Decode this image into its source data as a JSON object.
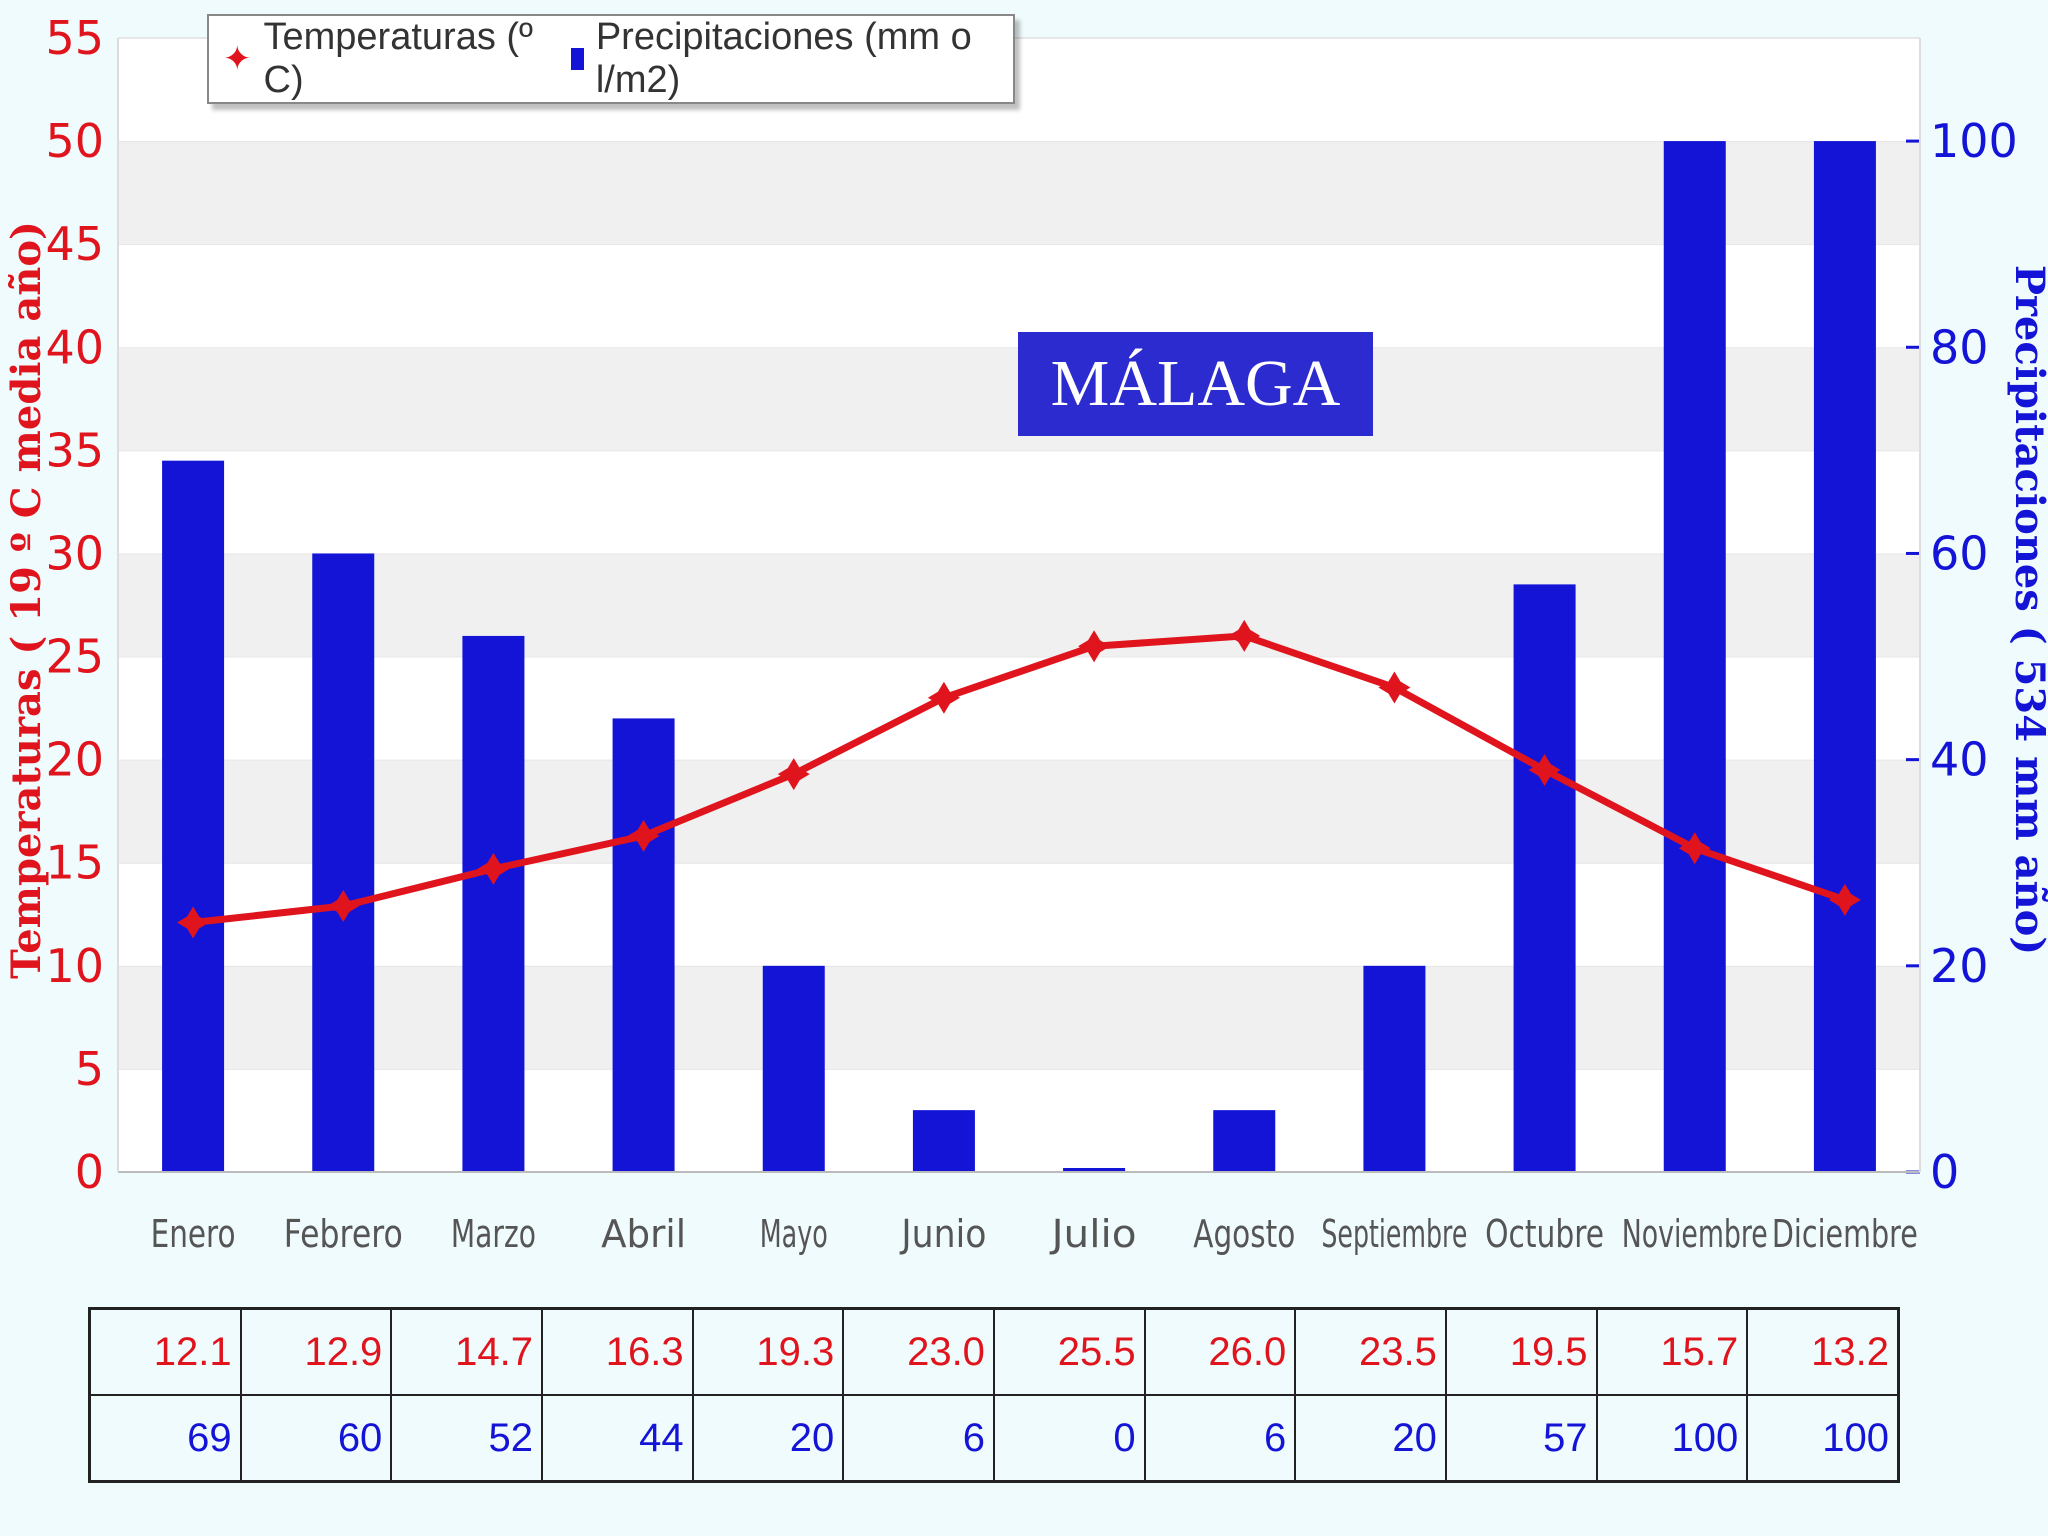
{
  "chart_data": {
    "type": "bar+line",
    "title": "MÁLAGA",
    "categories": [
      "Enero",
      "Febrero",
      "Marzo",
      "Abril",
      "Mayo",
      "Junio",
      "Julio",
      "Agosto",
      "Septiembre",
      "Octubre",
      "Noviembre",
      "Diciembre"
    ],
    "series": [
      {
        "name": "Temperaturas (º C)",
        "type": "line",
        "axis": "left",
        "color": "#e0141c",
        "values": [
          12.1,
          12.9,
          14.7,
          16.3,
          19.3,
          23.0,
          25.5,
          26.0,
          23.5,
          19.5,
          15.7,
          13.2
        ]
      },
      {
        "name": "Precipitaciones (mm o l/m2)",
        "type": "bar",
        "axis": "right",
        "color": "#1414d6",
        "values": [
          69,
          60,
          52,
          44,
          20,
          6,
          0,
          6,
          20,
          57,
          100,
          100
        ]
      }
    ],
    "ylabel_left": "Temperaturas  ( 19 º C media año)",
    "ylabel_right": "Precipitaciones ( 534 mm año)",
    "ylim_left": [
      0,
      55
    ],
    "yticks_left": [
      "0",
      "5",
      "10",
      "15",
      "20",
      "25",
      "30",
      "35",
      "40",
      "45",
      "50",
      "55"
    ],
    "ylim_right": [
      0,
      110
    ],
    "yticks_right": [
      "0",
      "20",
      "40",
      "60",
      "80",
      "100"
    ],
    "grid": "alternating horizontal bands",
    "legend": "top-left",
    "table": {
      "temps": [
        "12.1",
        "12.9",
        "14.7",
        "16.3",
        "19.3",
        "23.0",
        "25.5",
        "26.0",
        "23.5",
        "19.5",
        "15.7",
        "13.2"
      ],
      "precip": [
        "69",
        "60",
        "52",
        "44",
        "20",
        "6",
        "0",
        "6",
        "20",
        "57",
        "100",
        "100"
      ]
    }
  },
  "legend": {
    "temp_label": "Temperaturas (º C)",
    "precip_label": "Precipitaciones (mm o l/m2)"
  }
}
